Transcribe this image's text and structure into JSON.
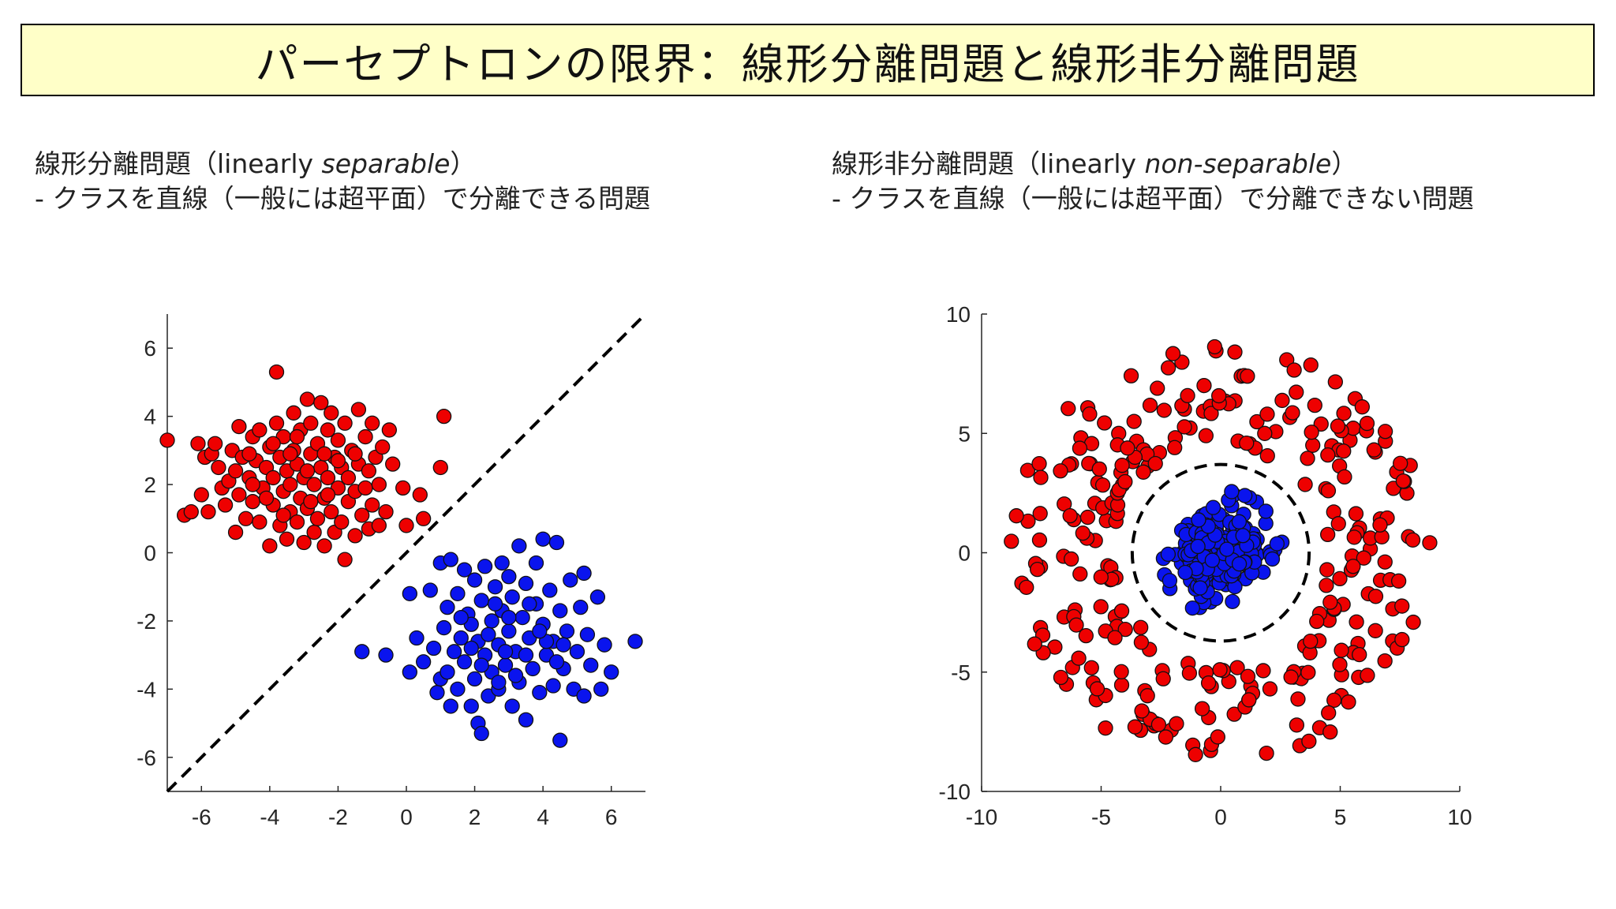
{
  "title": "パーセプトロンの限界：線形分離問題と線形非分離問題",
  "left_panel": {
    "heading_ja": "線形分離問題（linearly ",
    "heading_en": "separable",
    "heading_close": "）",
    "description": "- クラスを直線（一般には超平面）で分離できる問題"
  },
  "right_panel": {
    "heading_ja": "線形非分離問題（linearly ",
    "heading_en": "non-separable",
    "heading_close": "）",
    "description": "- クラスを直線（一般には超平面）で分離できない問題"
  },
  "colors": {
    "red": "#ee0000",
    "blue": "#0a14ee",
    "edge": "#111111",
    "title_bg": "#ffffc8"
  },
  "chart_data": [
    {
      "type": "scatter",
      "xlim": [
        -7,
        7
      ],
      "ylim": [
        -7,
        7
      ],
      "xticks": [
        -6,
        -4,
        -2,
        0,
        2,
        4,
        6
      ],
      "yticks": [
        -6,
        -4,
        -2,
        0,
        2,
        4,
        6
      ],
      "boundary": {
        "style": "dashed",
        "kind": "line",
        "from": [
          -7,
          -7
        ],
        "to": [
          7,
          7
        ]
      },
      "series": [
        {
          "color": "red",
          "points": [
            [
              -7.0,
              3.3
            ],
            [
              -6.5,
              1.1
            ],
            [
              -6.3,
              1.2
            ],
            [
              -6.1,
              3.2
            ],
            [
              -6.0,
              1.7
            ],
            [
              -5.9,
              2.8
            ],
            [
              -5.8,
              1.2
            ],
            [
              -5.7,
              2.9
            ],
            [
              -5.6,
              3.2
            ],
            [
              -5.5,
              2.5
            ],
            [
              -5.4,
              1.9
            ],
            [
              -5.3,
              1.4
            ],
            [
              -5.2,
              2.1
            ],
            [
              -5.1,
              3.0
            ],
            [
              -5.0,
              0.6
            ],
            [
              -5.0,
              2.4
            ],
            [
              -4.9,
              1.7
            ],
            [
              -4.9,
              3.7
            ],
            [
              -4.8,
              2.8
            ],
            [
              -4.7,
              1.0
            ],
            [
              -4.6,
              2.2
            ],
            [
              -4.5,
              3.4
            ],
            [
              -4.5,
              1.5
            ],
            [
              -4.4,
              2.7
            ],
            [
              -4.3,
              0.9
            ],
            [
              -4.3,
              3.6
            ],
            [
              -4.2,
              1.9
            ],
            [
              -4.1,
              2.5
            ],
            [
              -4.0,
              0.2
            ],
            [
              -4.0,
              3.1
            ],
            [
              -3.9,
              1.4
            ],
            [
              -3.9,
              2.2
            ],
            [
              -3.8,
              5.3
            ],
            [
              -3.8,
              3.8
            ],
            [
              -3.7,
              0.8
            ],
            [
              -3.7,
              2.8
            ],
            [
              -3.6,
              1.8
            ],
            [
              -3.6,
              3.4
            ],
            [
              -3.5,
              2.4
            ],
            [
              -3.5,
              0.4
            ],
            [
              -3.4,
              1.2
            ],
            [
              -3.4,
              2.0
            ],
            [
              -3.3,
              3.0
            ],
            [
              -3.3,
              4.1
            ],
            [
              -3.2,
              0.9
            ],
            [
              -3.2,
              2.6
            ],
            [
              -3.1,
              1.6
            ],
            [
              -3.1,
              3.6
            ],
            [
              -3.0,
              2.2
            ],
            [
              -3.0,
              0.3
            ],
            [
              -2.9,
              4.5
            ],
            [
              -2.9,
              1.3
            ],
            [
              -2.8,
              2.9
            ],
            [
              -2.8,
              3.8
            ],
            [
              -2.7,
              0.6
            ],
            [
              -2.7,
              2.0
            ],
            [
              -2.6,
              1.0
            ],
            [
              -2.6,
              3.2
            ],
            [
              -2.5,
              4.4
            ],
            [
              -2.5,
              2.5
            ],
            [
              -2.4,
              1.6
            ],
            [
              -2.4,
              0.2
            ],
            [
              -2.3,
              3.6
            ],
            [
              -2.3,
              2.2
            ],
            [
              -2.2,
              1.2
            ],
            [
              -2.2,
              4.1
            ],
            [
              -2.1,
              2.8
            ],
            [
              -2.1,
              0.6
            ],
            [
              -2.0,
              1.9
            ],
            [
              -2.0,
              3.3
            ],
            [
              -1.9,
              2.5
            ],
            [
              -1.9,
              0.9
            ],
            [
              -1.8,
              -0.2
            ],
            [
              -1.8,
              3.8
            ],
            [
              -1.7,
              1.5
            ],
            [
              -1.7,
              2.2
            ],
            [
              -1.6,
              3.0
            ],
            [
              -1.5,
              0.5
            ],
            [
              -1.5,
              1.8
            ],
            [
              -1.4,
              4.2
            ],
            [
              -1.4,
              2.6
            ],
            [
              -1.3,
              1.1
            ],
            [
              -1.2,
              3.4
            ],
            [
              -1.2,
              1.9
            ],
            [
              -1.1,
              0.7
            ],
            [
              -1.1,
              2.4
            ],
            [
              -1.0,
              3.8
            ],
            [
              -1.0,
              1.4
            ],
            [
              -0.9,
              2.8
            ],
            [
              -0.8,
              0.8
            ],
            [
              -0.8,
              2.0
            ],
            [
              -0.7,
              3.1
            ],
            [
              -0.6,
              1.2
            ],
            [
              -0.5,
              3.6
            ],
            [
              -0.4,
              2.6
            ],
            [
              -0.1,
              1.9
            ],
            [
              0.0,
              0.8
            ],
            [
              0.4,
              1.7
            ],
            [
              0.5,
              1.0
            ],
            [
              1.0,
              2.5
            ],
            [
              1.1,
              4.0
            ],
            [
              -4.6,
              2.9
            ],
            [
              -3.9,
              3.2
            ],
            [
              -3.4,
              2.9
            ],
            [
              -2.9,
              2.4
            ],
            [
              -2.4,
              2.9
            ],
            [
              -3.6,
              1.1
            ],
            [
              -2.8,
              1.5
            ],
            [
              -2.0,
              2.7
            ],
            [
              -4.1,
              1.6
            ],
            [
              -3.2,
              3.4
            ],
            [
              -4.5,
              2.0
            ],
            [
              -2.3,
              1.7
            ],
            [
              -1.5,
              2.9
            ]
          ]
        },
        {
          "color": "blue",
          "points": [
            [
              -1.3,
              -2.9
            ],
            [
              -0.6,
              -3.0
            ],
            [
              0.1,
              -3.5
            ],
            [
              0.1,
              -1.2
            ],
            [
              0.3,
              -2.5
            ],
            [
              0.5,
              -3.2
            ],
            [
              0.7,
              -1.1
            ],
            [
              0.8,
              -2.8
            ],
            [
              0.9,
              -4.1
            ],
            [
              1.0,
              -3.7
            ],
            [
              1.0,
              -0.3
            ],
            [
              1.1,
              -2.2
            ],
            [
              1.2,
              -1.6
            ],
            [
              1.2,
              -3.5
            ],
            [
              1.3,
              -4.5
            ],
            [
              1.3,
              -0.2
            ],
            [
              1.4,
              -2.9
            ],
            [
              1.5,
              -1.2
            ],
            [
              1.5,
              -4.0
            ],
            [
              1.6,
              -2.5
            ],
            [
              1.7,
              -0.5
            ],
            [
              1.7,
              -3.2
            ],
            [
              1.8,
              -1.8
            ],
            [
              1.9,
              -4.5
            ],
            [
              1.9,
              -2.1
            ],
            [
              2.0,
              -3.7
            ],
            [
              2.0,
              -0.8
            ],
            [
              2.1,
              -5.0
            ],
            [
              2.1,
              -2.6
            ],
            [
              2.2,
              -1.4
            ],
            [
              2.2,
              -5.3
            ],
            [
              2.3,
              -3.0
            ],
            [
              2.3,
              -0.4
            ],
            [
              2.4,
              -4.2
            ],
            [
              2.5,
              -2.0
            ],
            [
              2.5,
              -3.5
            ],
            [
              2.6,
              -1.0
            ],
            [
              2.7,
              -2.7
            ],
            [
              2.7,
              -4.0
            ],
            [
              2.8,
              -0.3
            ],
            [
              2.8,
              -1.7
            ],
            [
              2.9,
              -3.3
            ],
            [
              3.0,
              -2.3
            ],
            [
              3.0,
              -0.7
            ],
            [
              3.1,
              -4.5
            ],
            [
              3.1,
              -1.3
            ],
            [
              3.2,
              -2.9
            ],
            [
              3.3,
              0.2
            ],
            [
              3.3,
              -3.8
            ],
            [
              3.4,
              -1.9
            ],
            [
              3.5,
              -0.9
            ],
            [
              3.5,
              -4.9
            ],
            [
              3.6,
              -2.5
            ],
            [
              3.7,
              -3.4
            ],
            [
              3.8,
              -1.5
            ],
            [
              3.8,
              -0.3
            ],
            [
              3.9,
              -4.1
            ],
            [
              4.0,
              -2.1
            ],
            [
              4.0,
              0.4
            ],
            [
              4.1,
              -3.0
            ],
            [
              4.2,
              -1.1
            ],
            [
              4.3,
              -3.9
            ],
            [
              4.3,
              -2.6
            ],
            [
              4.4,
              0.3
            ],
            [
              4.5,
              -5.5
            ],
            [
              4.5,
              -1.7
            ],
            [
              4.6,
              -3.4
            ],
            [
              4.7,
              -2.3
            ],
            [
              4.8,
              -0.8
            ],
            [
              4.9,
              -4.0
            ],
            [
              5.0,
              -2.9
            ],
            [
              5.1,
              -1.6
            ],
            [
              5.2,
              -4.2
            ],
            [
              5.2,
              -0.6
            ],
            [
              5.3,
              -2.4
            ],
            [
              5.4,
              -3.3
            ],
            [
              5.6,
              -1.3
            ],
            [
              5.7,
              -4.0
            ],
            [
              5.8,
              -2.7
            ],
            [
              6.0,
              -3.5
            ],
            [
              6.7,
              -2.6
            ],
            [
              1.6,
              -1.9
            ],
            [
              2.4,
              -2.4
            ],
            [
              3.0,
              -1.9
            ],
            [
              3.6,
              -1.5
            ],
            [
              2.2,
              -3.3
            ],
            [
              2.9,
              -2.9
            ],
            [
              3.5,
              -3.0
            ],
            [
              4.1,
              -2.6
            ],
            [
              1.9,
              -2.8
            ],
            [
              2.6,
              -1.5
            ],
            [
              3.9,
              -2.3
            ],
            [
              4.6,
              -2.7
            ],
            [
              3.2,
              -3.6
            ],
            [
              2.7,
              -3.8
            ],
            [
              4.4,
              -3.2
            ]
          ]
        }
      ]
    },
    {
      "type": "scatter",
      "xlim": [
        -10,
        10
      ],
      "ylim": [
        -10,
        10
      ],
      "xticks": [
        -10,
        -5,
        0,
        5,
        10
      ],
      "yticks": [
        -10,
        -5,
        0,
        5,
        10
      ],
      "boundary": {
        "style": "dashed",
        "kind": "circle",
        "center": [
          0,
          0
        ],
        "radius": 3.7
      },
      "series": [
        {
          "color": "red",
          "ring": {
            "r_min": 4.5,
            "r_max": 8.8,
            "count": 300,
            "seed": 7
          }
        },
        {
          "color": "blue",
          "gaussian": {
            "sigma": 0.95,
            "max_r": 2.6,
            "count": 260,
            "seed": 11
          }
        }
      ]
    }
  ]
}
